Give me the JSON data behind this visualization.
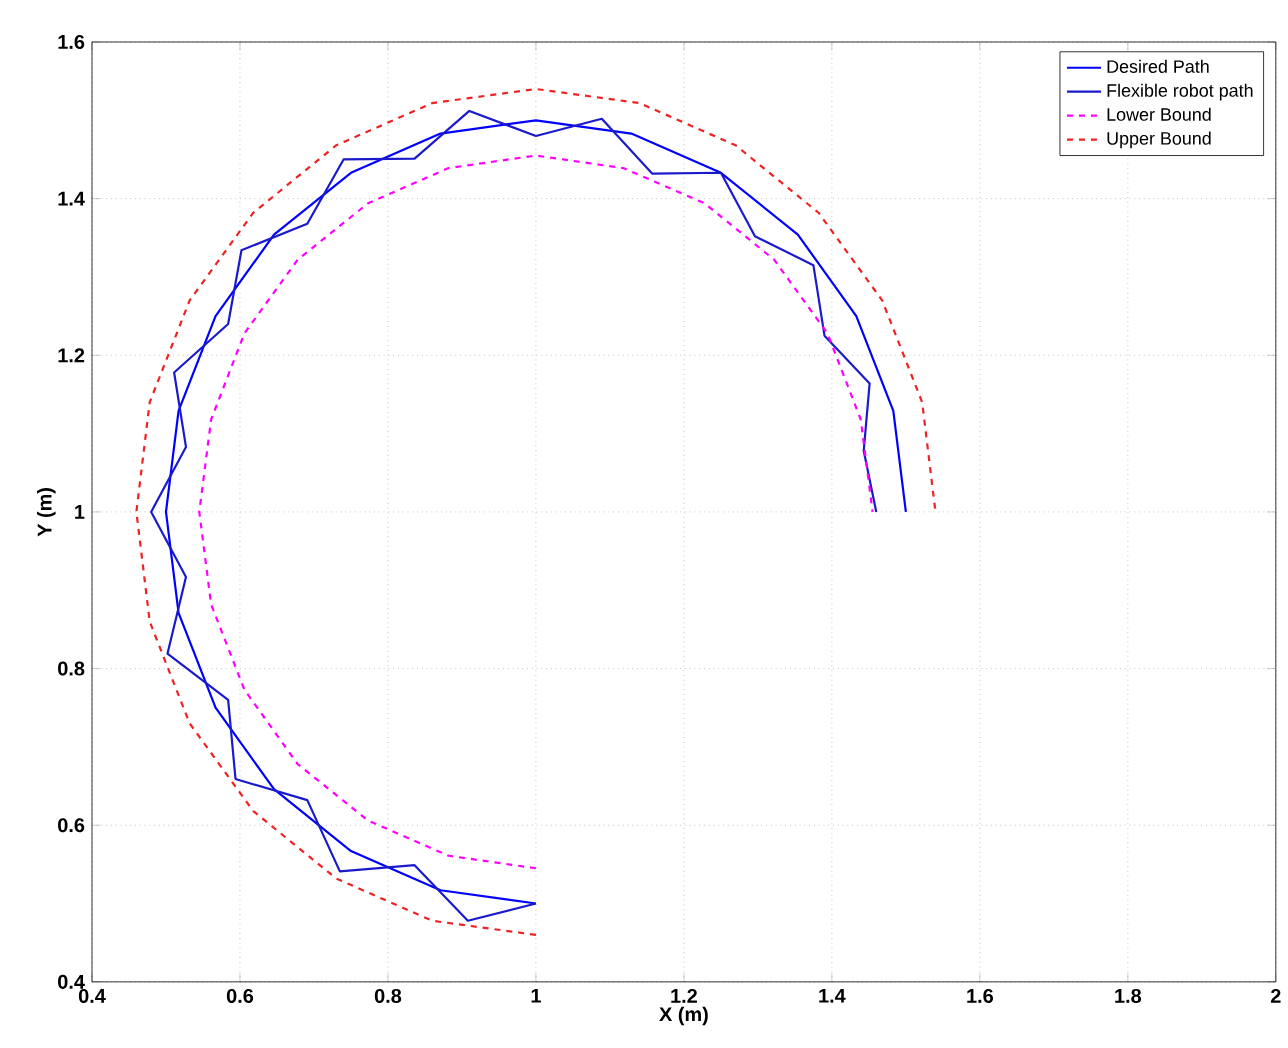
{
  "chart_data": {
    "type": "line",
    "xlabel": "X (m)",
    "ylabel": "Y (m)",
    "xlim": [
      0.4,
      2
    ],
    "ylim": [
      0.4,
      1.6
    ],
    "xticks": [
      0.4,
      0.6,
      0.8,
      1,
      1.2,
      1.4,
      1.6,
      1.8,
      2
    ],
    "yticks": [
      0.4,
      0.6,
      0.8,
      1,
      1.2,
      1.4,
      1.6
    ],
    "grid": true,
    "legend": "top right",
    "marker": "none",
    "series": [
      {
        "name": "Desired Path",
        "color": "#0000ff",
        "line_style": "solid",
        "x": [
          1,
          0.871,
          0.75,
          0.646,
          0.567,
          0.517,
          0.5,
          0.517,
          0.567,
          0.646,
          0.75,
          0.871,
          1,
          1.129,
          1.25,
          1.354,
          1.433,
          1.483,
          1.5
        ],
        "values": [
          0.5,
          0.517,
          0.567,
          0.646,
          0.75,
          0.871,
          1,
          1.129,
          1.25,
          1.354,
          1.433,
          1.483,
          1.5,
          1.483,
          1.433,
          1.354,
          1.25,
          1.129,
          1
        ]
      },
      {
        "name": "Flexible robot path",
        "color": "#1a1acc",
        "line_style": "solid",
        "x": [
          1,
          0.908,
          0.836,
          0.735,
          0.691,
          0.594,
          0.584,
          0.502,
          0.527,
          0.48,
          0.527,
          0.511,
          0.584,
          0.602,
          0.691,
          0.74,
          0.836,
          0.91,
          1,
          1.089,
          1.157,
          1.25,
          1.296,
          1.375,
          1.39,
          1.451,
          1.443,
          1.46
        ],
        "values": [
          0.5,
          0.478,
          0.549,
          0.541,
          0.632,
          0.659,
          0.76,
          0.819,
          0.917,
          1,
          1.083,
          1.178,
          1.24,
          1.334,
          1.368,
          1.45,
          1.451,
          1.512,
          1.48,
          1.502,
          1.432,
          1.433,
          1.352,
          1.315,
          1.225,
          1.164,
          1.078,
          1
        ]
      },
      {
        "name": "Lower Bound",
        "color": "#ff00ff",
        "line_style": "dashed",
        "x": [
          1,
          0.882,
          0.773,
          0.678,
          0.606,
          0.561,
          0.545,
          0.561,
          0.606,
          0.678,
          0.773,
          0.882,
          1,
          1.118,
          1.228,
          1.322,
          1.394,
          1.439,
          1.455
        ],
        "values": [
          0.545,
          0.561,
          0.606,
          0.678,
          0.773,
          0.882,
          1,
          1.118,
          1.228,
          1.322,
          1.394,
          1.439,
          1.455,
          1.439,
          1.394,
          1.322,
          1.228,
          1.118,
          1
        ]
      },
      {
        "name": "Upper Bound",
        "color": "#ee2222",
        "line_style": "dashed",
        "x": [
          1,
          0.86,
          0.73,
          0.618,
          0.532,
          0.478,
          0.46,
          0.478,
          0.532,
          0.618,
          0.73,
          0.86,
          1,
          1.14,
          1.27,
          1.382,
          1.468,
          1.522,
          1.54
        ],
        "values": [
          0.46,
          0.478,
          0.532,
          0.618,
          0.73,
          0.86,
          1,
          1.14,
          1.27,
          1.382,
          1.468,
          1.522,
          1.54,
          1.522,
          1.468,
          1.382,
          1.27,
          1.14,
          1
        ]
      }
    ]
  }
}
